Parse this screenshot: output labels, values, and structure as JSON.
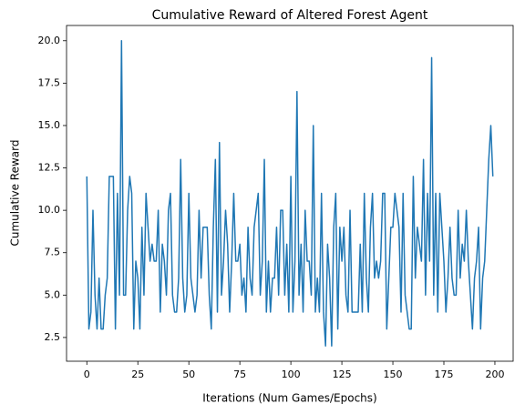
{
  "chart_data": {
    "type": "line",
    "title": "Cumulative Reward of Altered Forest Agent",
    "x_label": "Iterations (Num Games/Epochs)",
    "y_label": "Cumulative Reward",
    "color": "#1f77b4",
    "xlim": [
      -9.95,
      208.95
    ],
    "ylim": [
      1.1,
      20.9
    ],
    "xticks": [
      0,
      25,
      50,
      75,
      100,
      125,
      150,
      175,
      200
    ],
    "yticks": [
      2.5,
      {
        "value": 5,
        "label": "5.0"
      },
      7.5,
      {
        "value": 10,
        "label": "10.0"
      },
      12.5,
      {
        "value": 15,
        "label": "15.0"
      },
      17.5,
      {
        "value": 20,
        "label": "20.0"
      }
    ],
    "values": [
      12,
      3,
      4,
      10,
      5,
      3,
      6,
      3,
      3,
      5,
      6,
      12,
      12,
      12,
      3,
      11,
      5,
      20,
      5,
      5,
      10,
      12,
      11,
      3,
      7,
      6,
      3,
      9,
      5,
      11,
      9,
      7,
      8,
      7,
      7,
      10,
      4,
      8,
      7,
      5,
      10,
      11,
      5,
      4,
      4,
      6,
      13,
      6,
      4,
      5,
      11,
      6,
      5,
      4,
      5,
      10,
      6,
      9,
      9,
      9,
      5,
      3,
      9,
      13,
      4,
      14,
      5,
      7,
      10,
      8,
      4,
      7,
      11,
      7,
      7,
      8,
      5,
      6,
      4,
      9,
      6,
      5,
      9,
      10,
      11,
      5,
      7,
      13,
      4,
      7,
      4,
      6,
      6,
      9,
      5,
      10,
      10,
      5,
      8,
      4,
      12,
      4,
      7,
      17,
      5,
      8,
      4,
      10,
      7,
      7,
      5,
      15,
      4,
      6,
      4,
      11,
      4,
      2,
      8,
      6,
      2,
      9,
      11,
      3,
      9,
      7,
      9,
      5,
      4,
      10,
      4,
      4,
      4,
      4,
      8,
      4,
      11,
      6,
      4,
      9,
      11,
      6,
      7,
      6,
      7,
      11,
      11,
      3,
      6,
      9,
      9,
      11,
      10,
      9,
      4,
      11,
      5,
      4,
      3,
      3,
      12,
      6,
      9,
      8,
      7,
      13,
      5,
      11,
      7,
      19,
      5,
      11,
      4,
      11,
      9,
      7,
      4,
      6,
      9,
      6,
      5,
      5,
      10,
      6,
      8,
      7,
      10,
      7,
      5,
      3,
      6,
      7,
      9,
      3,
      6,
      7,
      10,
      13,
      15,
      12
    ]
  }
}
